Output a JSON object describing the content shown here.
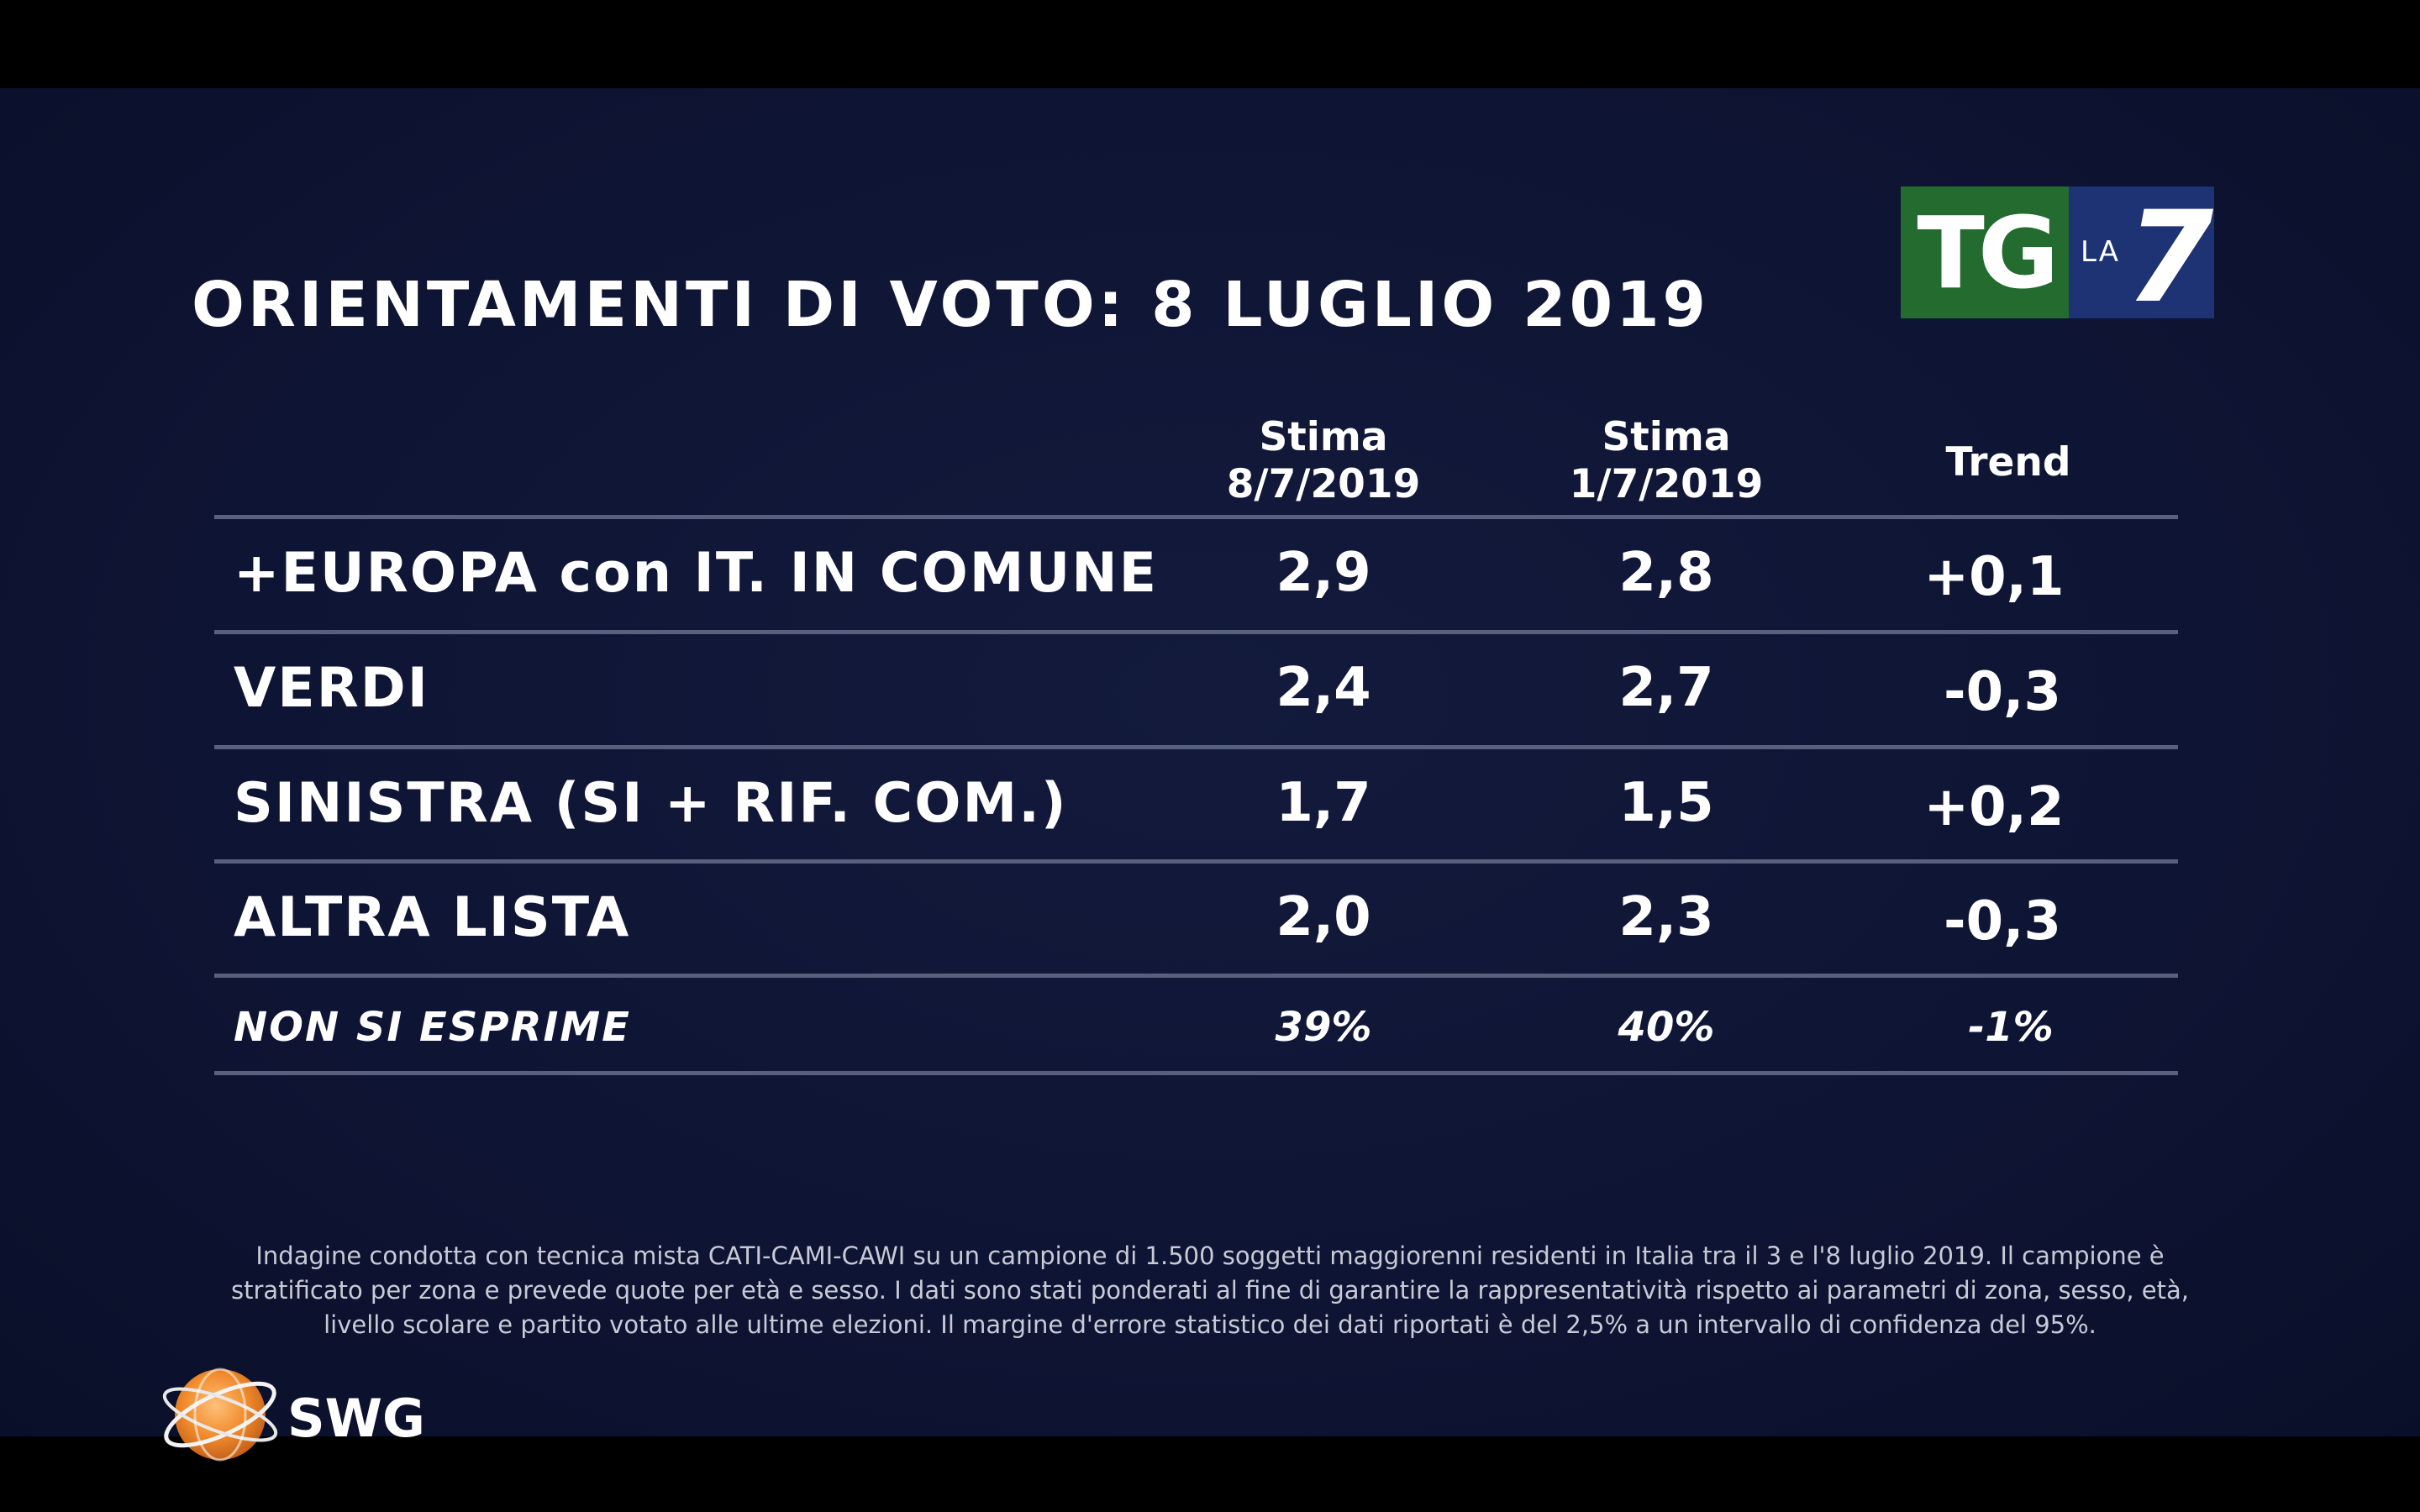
{
  "title": "ORIENTAMENTI DI VOTO: 8 LUGLIO 2019",
  "logo_tg": {
    "left": "TG",
    "la": "LA",
    "seven": "7"
  },
  "logo_swg": "SWG",
  "chart_data": {
    "type": "table",
    "columns": [
      {
        "line1": "Stima",
        "line2": "8/7/2019"
      },
      {
        "line1": "Stima",
        "line2": "1/7/2019"
      },
      {
        "line1": "Trend",
        "line2": ""
      }
    ],
    "rows": [
      {
        "party": "+EUROPA con IT. IN COMUNE",
        "stima_8_7": "2,9",
        "stima_1_7": "2,8",
        "trend": "+0,1"
      },
      {
        "party": "VERDI",
        "stima_8_7": "2,4",
        "stima_1_7": "2,7",
        "trend": "-0,3"
      },
      {
        "party": "SINISTRA (SI + RIF. COM.)",
        "stima_8_7": "1,7",
        "stima_1_7": "1,5",
        "trend": "+0,2"
      },
      {
        "party": "ALTRA LISTA",
        "stima_8_7": "2,0",
        "stima_1_7": "2,3",
        "trend": "-0,3"
      },
      {
        "party": "NON SI ESPRIME",
        "stima_8_7": "39%",
        "stima_1_7": "40%",
        "trend": "-1%"
      }
    ]
  },
  "note": "Indagine condotta con tecnica mista CATI-CAMI-CAWI su un campione di 1.500 soggetti maggiorenni residenti in Italia tra il 3 e l'8 luglio 2019. Il campione è stratificato per zona e prevede quote per età e sesso. I dati sono stati ponderati al fine di garantire la rappresentatività rispetto ai parametri di zona, sesso, età, livello scolare e partito votato alle ultime elezioni. Il margine d'errore statistico dei dati riportati è del 2,5% a un intervallo di confidenza del 95%.",
  "colors": {
    "background": "#0e1433",
    "text": "#ffffff",
    "rule": "#58607e",
    "tg_green": "#236b2f",
    "tg_blue": "#1d3373",
    "swg_orange": "#f0892a"
  }
}
